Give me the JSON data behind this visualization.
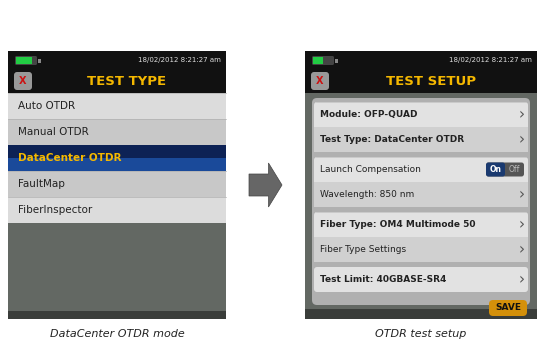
{
  "bg_color": "#ffffff",
  "status_bar_bg": "#111111",
  "battery_green": "#22cc44",
  "battery_outline": "#555555",
  "datetime_text": "18/02/2012 8:21:27 am",
  "datetime_color": "#dddddd",
  "title_bar_bg": "#111111",
  "title_color": "#f5b800",
  "panel1_title": "TEST TYPE",
  "panel2_title": "TEST SETUP",
  "xbtn_bg": "#888888",
  "xbtn_color": "#cc2222",
  "list_colors": [
    "#dcdcdc",
    "#c8c8c8",
    "#dcdcdc",
    "#c8c8c8",
    "#dcdcdc"
  ],
  "selected_idx": 2,
  "selected_top": "#1a4a9a",
  "selected_bot": "#0d2255",
  "selected_text": "#f5b800",
  "normal_text": "#222222",
  "panel1_items": [
    "Auto OTDR",
    "Manual OTDR",
    "DataCenter OTDR",
    "FaultMap",
    "FiberInspector"
  ],
  "panel_frame": "#1e1e1e",
  "screen_gray": "#636863",
  "screen_dark": "#3a3d3a",
  "inner_bg": "#b0b0b0",
  "row_bg_light": "#e2e2e2",
  "row_bg_dark": "#d0d0d0",
  "row_divider": "#c0c0c0",
  "arrow_color": "#555555",
  "big_arrow_color": "#666666",
  "panel2_rows": [
    {
      "text": "Module: OFP-QUAD",
      "bold": true,
      "arrow": true,
      "group": 0
    },
    {
      "text": "Test Type: DataCenter OTDR",
      "bold": true,
      "arrow": true,
      "group": 0
    },
    {
      "text": "Launch Compensation",
      "bold": false,
      "arrow": false,
      "group": 1,
      "toggle": true
    },
    {
      "text": "Wavelength: 850 nm",
      "bold": false,
      "arrow": true,
      "group": 1
    },
    {
      "text": "Fiber Type: OM4 Multimode 50",
      "bold": true,
      "arrow": true,
      "group": 2
    },
    {
      "text": "Fiber Type Settings",
      "bold": false,
      "arrow": true,
      "group": 2
    },
    {
      "text": "Test Limit: 40GBASE-SR4",
      "bold": true,
      "arrow": true,
      "group": 3
    }
  ],
  "on_color": "#1a3a70",
  "off_color": "#888888",
  "save_color": "#d4900a",
  "save_text": "SAVE",
  "caption1": "DataCenter OTDR mode",
  "caption2": "OTDR test setup",
  "caption_color": "#222222"
}
